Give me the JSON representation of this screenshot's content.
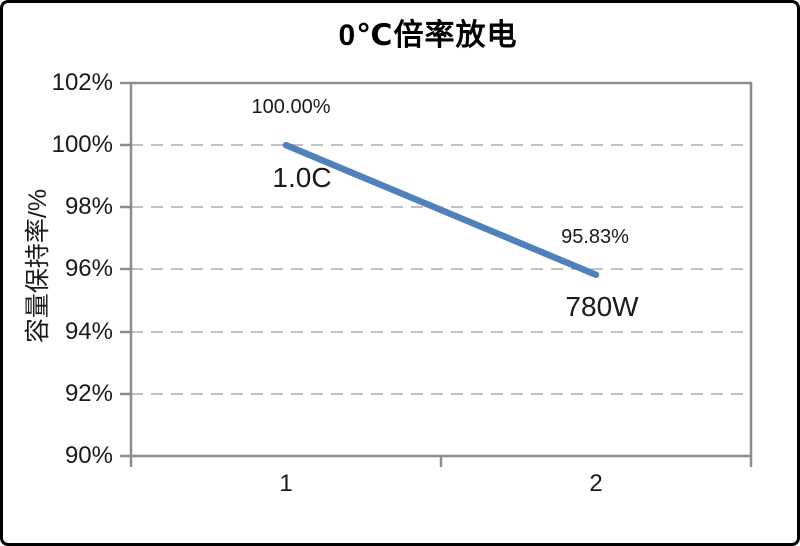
{
  "chart_data": {
    "type": "line",
    "title": "0℃倍率放电",
    "ylabel": "容量保持率/%",
    "xlabel": "",
    "categories": [
      "1",
      "2"
    ],
    "series": [
      {
        "name": "",
        "values": [
          100.0,
          95.83
        ],
        "point_value_labels": [
          "100.00%",
          "95.83%"
        ],
        "point_annotations": [
          "1.0C",
          "780W"
        ],
        "color": "#4F81BD"
      }
    ],
    "ylim": [
      90,
      102
    ],
    "ytick_step": 2,
    "ytick_labels": [
      "102%",
      "100%",
      "98%",
      "96%",
      "94%",
      "92%",
      "90%"
    ],
    "grid": "horizontal-dashed",
    "legend": "none"
  },
  "colors": {
    "line": "#4F81BD",
    "axis": "#8C8C8C",
    "gridline": "#C0C0C0",
    "text": "#1A1A1A",
    "title": "#000000",
    "frame_border": "#000000",
    "background": "#FFFFFF"
  }
}
